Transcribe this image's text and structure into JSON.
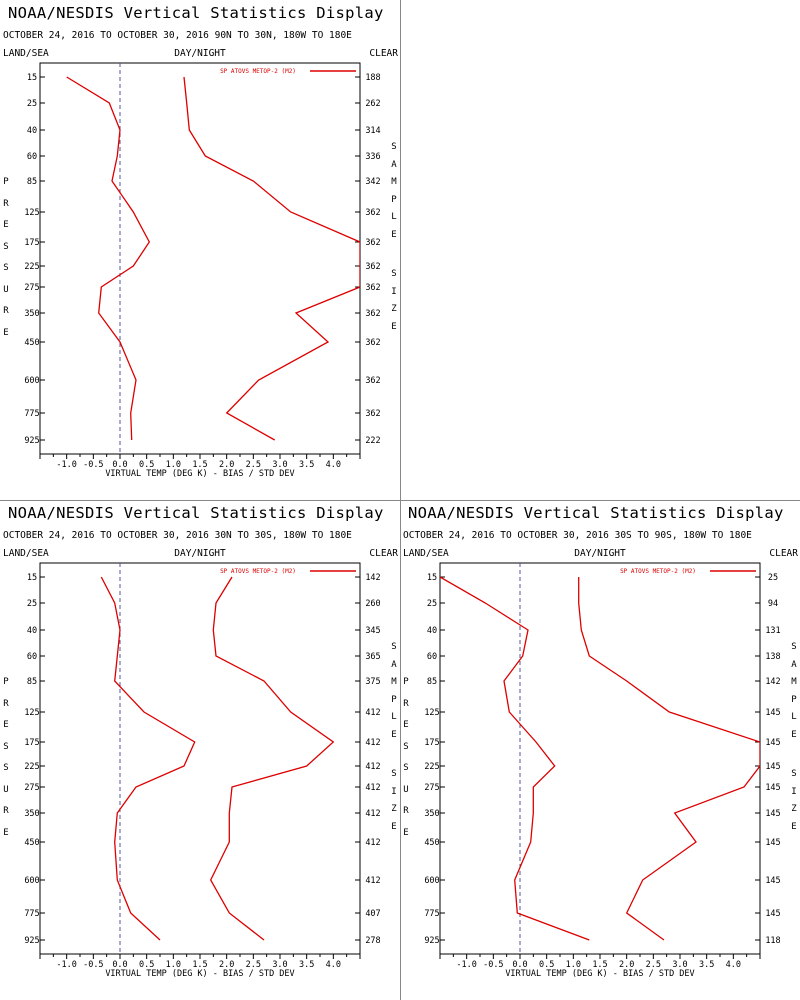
{
  "header": {
    "title": "NOAA/NESDIS Vertical Statistics Display",
    "date_range": "OCTOBER 24, 2016 TO OCTOBER 30, 2016",
    "label_left": "LAND/SEA",
    "label_mid": "DAY/NIGHT",
    "label_right": "CLEAR"
  },
  "axis": {
    "xlabel": "VIRTUAL TEMP (DEG K) - BIAS / STD DEV",
    "ylabel_left": "PRESSURE",
    "ylabel_right": "SAMPLE SIZE",
    "legend": "SP ATOVS METOP-2 (M2)"
  },
  "colors": {
    "series": "#dd0000",
    "zero_line": "#555599",
    "frame": "#000000"
  },
  "chart_data": [
    {
      "type": "line",
      "region": "90N TO 30N, 180W TO 180E",
      "xlim": [
        -1.5,
        4.5
      ],
      "xticks": [
        "-1.0",
        "-0.5",
        "0.0",
        "0.5",
        "1.0",
        "1.5",
        "2.0",
        "2.5",
        "3.0",
        "3.5",
        "4.0"
      ],
      "pressure": [
        "15",
        "25",
        "40",
        "60",
        "85",
        "125",
        "175",
        "225",
        "275",
        "350",
        "450",
        "600",
        "775",
        "925"
      ],
      "sample_size": [
        "188",
        "262",
        "314",
        "336",
        "342",
        "362",
        "362",
        "362",
        "362",
        "362",
        "362",
        "362",
        "362",
        "222"
      ],
      "series": [
        {
          "values": [
            -1.0,
            -0.2,
            0.0,
            -0.05,
            -0.15,
            0.25,
            0.55,
            0.25,
            -0.35,
            -0.4,
            0.0,
            0.3,
            0.2,
            0.22
          ]
        },
        {
          "values": [
            1.2,
            1.25,
            1.3,
            1.6,
            2.5,
            3.2,
            4.5,
            4.5,
            4.5,
            3.3,
            3.9,
            2.6,
            2.0,
            2.9
          ]
        }
      ]
    },
    {
      "type": "line",
      "region": "30N TO 30S, 180W TO 180E",
      "xlim": [
        -1.5,
        4.5
      ],
      "xticks": [
        "-1.0",
        "-0.5",
        "0.0",
        "0.5",
        "1.0",
        "1.5",
        "2.0",
        "2.5",
        "3.0",
        "3.5",
        "4.0"
      ],
      "pressure": [
        "15",
        "25",
        "40",
        "60",
        "85",
        "125",
        "175",
        "225",
        "275",
        "350",
        "450",
        "600",
        "775",
        "925"
      ],
      "sample_size": [
        "142",
        "260",
        "345",
        "365",
        "375",
        "412",
        "412",
        "412",
        "412",
        "412",
        "412",
        "412",
        "407",
        "278"
      ],
      "series": [
        {
          "values": [
            -0.35,
            -0.1,
            0.0,
            -0.05,
            -0.1,
            0.45,
            1.4,
            1.2,
            0.3,
            -0.05,
            -0.1,
            -0.05,
            0.2,
            0.75
          ]
        },
        {
          "values": [
            2.1,
            1.8,
            1.75,
            1.8,
            2.7,
            3.2,
            4.0,
            3.5,
            2.1,
            2.05,
            2.05,
            1.7,
            2.05,
            2.7
          ]
        }
      ]
    },
    {
      "type": "line",
      "region": "30S TO 90S, 180W TO 180E",
      "xlim": [
        -1.5,
        4.5
      ],
      "xticks": [
        "-1.0",
        "-0.5",
        "0.0",
        "0.5",
        "1.0",
        "1.5",
        "2.0",
        "2.5",
        "3.0",
        "3.5",
        "4.0"
      ],
      "pressure": [
        "15",
        "25",
        "40",
        "60",
        "85",
        "125",
        "175",
        "225",
        "275",
        "350",
        "450",
        "600",
        "775",
        "925"
      ],
      "sample_size": [
        "25",
        "94",
        "131",
        "138",
        "142",
        "145",
        "145",
        "145",
        "145",
        "145",
        "145",
        "145",
        "145",
        "118"
      ],
      "series": [
        {
          "values": [
            -1.5,
            -0.65,
            0.15,
            0.05,
            -0.3,
            -0.2,
            0.3,
            0.65,
            0.25,
            0.25,
            0.2,
            -0.1,
            -0.05,
            1.3
          ]
        },
        {
          "values": [
            1.1,
            1.1,
            1.15,
            1.3,
            2.0,
            2.8,
            4.5,
            4.5,
            4.2,
            2.9,
            3.3,
            2.3,
            2.0,
            2.7
          ]
        }
      ]
    }
  ]
}
